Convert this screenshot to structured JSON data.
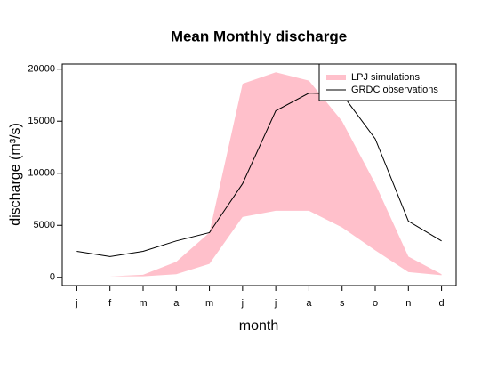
{
  "chart_data": {
    "type": "band-line",
    "title": "Mean Monthly discharge",
    "x_label": "month",
    "y_label": "discharge (m³/s)",
    "categories": [
      "j",
      "f",
      "m",
      "a",
      "m",
      "j",
      "j",
      "a",
      "s",
      "o",
      "n",
      "d"
    ],
    "series": [
      {
        "name": "LPJ simulations",
        "color": "#ffc0cb",
        "lower": [
          100,
          100,
          100,
          300,
          1300,
          5800,
          6400,
          6400,
          4800,
          2600,
          500,
          200
        ],
        "upper": [
          100,
          100,
          250,
          1500,
          4300,
          18600,
          19700,
          18900,
          15000,
          9000,
          2000,
          300
        ]
      },
      {
        "name": "GRDC observations",
        "color": "#000000",
        "values": [
          2500,
          2000,
          2500,
          3500,
          4300,
          9000,
          16000,
          17700,
          17600,
          13300,
          5400,
          3500
        ]
      }
    ],
    "ylim": [
      -788,
      20488
    ],
    "yticks": [
      0,
      5000,
      10000,
      15000,
      20000
    ],
    "legend": "top-right"
  }
}
